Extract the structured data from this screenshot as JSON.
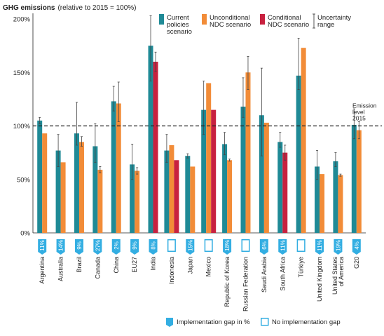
{
  "chart_data": {
    "type": "bar",
    "title": "GHG emissions",
    "subtitle": "(relative to 2015 = 100%)",
    "ylim": [
      0,
      200
    ],
    "yticks": [
      "0%",
      "50%",
      "100%",
      "150%",
      "200%"
    ],
    "ytick_values": [
      0,
      50,
      100,
      150,
      200
    ],
    "reference_line": {
      "value": 100,
      "label_lines": [
        "Emission",
        "level",
        "2015"
      ]
    },
    "legend_placement": "top",
    "legend": {
      "current": [
        "Current",
        "policies",
        "scenario"
      ],
      "unconditional": [
        "Unconditional",
        "NDC scenario"
      ],
      "conditional": [
        "Conditional",
        "NDC scenario"
      ],
      "uncertainty": [
        "Uncertainty",
        "range"
      ]
    },
    "colors": {
      "current": "#1f8a96",
      "unconditional": "#f28c38",
      "conditional": "#c8213f",
      "gap": "#33aee2",
      "errorbar": "#444444",
      "refline": "#222222"
    },
    "categories": [
      "Argentina",
      "Australia",
      "Brazil",
      "Canada",
      "China",
      "EU27",
      "India",
      "Indonesia",
      "Japan",
      "Mexico",
      "Republic of Korea",
      "Russian Federation",
      "Saudi Arabia",
      "South Africa",
      "Türkiye",
      "United Kingdom",
      "United States of America",
      "G20"
    ],
    "category_lines": [
      [
        "Argentina"
      ],
      [
        "Australia"
      ],
      [
        "Brazil"
      ],
      [
        "Canada"
      ],
      [
        "China"
      ],
      [
        "EU27"
      ],
      [
        "India"
      ],
      [
        "Indonesia"
      ],
      [
        "Japan"
      ],
      [
        "Mexico"
      ],
      [
        "Republic of Korea"
      ],
      [
        "Russian Federation"
      ],
      [
        "Saudi Arabia"
      ],
      [
        "South Africa"
      ],
      [
        "Türkiye"
      ],
      [
        "United Kingdom"
      ],
      [
        "United States",
        "of America"
      ],
      [
        "G20"
      ]
    ],
    "series": [
      {
        "key": "current",
        "name": "Current policies scenario",
        "values": [
          105,
          77,
          93,
          81,
          123,
          64,
          175,
          77,
          72,
          115,
          83,
          118,
          110,
          85,
          147,
          62,
          67,
          101
        ],
        "range": [
          [
            102,
            108
          ],
          [
            62,
            92
          ],
          [
            82,
            122
          ],
          [
            66,
            102
          ],
          [
            114,
            137
          ],
          [
            50,
            83
          ],
          [
            142,
            203
          ],
          [
            66,
            92
          ],
          [
            70,
            74
          ],
          [
            92,
            142
          ],
          [
            73,
            94
          ],
          [
            108,
            145
          ],
          [
            72,
            154
          ],
          [
            80,
            94
          ],
          [
            134,
            182
          ],
          [
            50,
            77
          ],
          [
            62,
            75
          ],
          [
            88,
            116
          ]
        ]
      },
      {
        "key": "unconditional",
        "name": "Unconditional NDC scenario",
        "values": [
          93,
          66,
          85,
          59,
          121,
          58,
          0,
          82,
          62,
          140,
          68,
          150,
          103,
          0,
          173,
          55,
          54,
          96
        ],
        "range": [
          null,
          null,
          [
            81,
            90
          ],
          [
            56,
            62
          ],
          [
            104,
            141
          ],
          [
            55,
            61
          ],
          null,
          null,
          null,
          null,
          [
            67,
            69
          ],
          [
            134,
            165
          ],
          null,
          null,
          null,
          null,
          [
            53,
            55
          ],
          [
            88,
            104
          ]
        ]
      },
      {
        "key": "conditional",
        "name": "Conditional NDC scenario",
        "values": [
          0,
          0,
          0,
          0,
          0,
          0,
          160,
          68,
          0,
          115,
          0,
          0,
          0,
          75,
          0,
          0,
          0,
          0
        ],
        "range": [
          null,
          null,
          null,
          null,
          null,
          null,
          [
            151,
            169
          ],
          null,
          null,
          null,
          null,
          null,
          null,
          [
            68,
            82
          ],
          null,
          null,
          null,
          null
        ]
      }
    ],
    "implementation_gap_pct": [
      11,
      14,
      9,
      27,
      2,
      9,
      8,
      null,
      15,
      null,
      18,
      null,
      6,
      11,
      null,
      11,
      19,
      4
    ],
    "gap_labels": [
      "11%",
      "14%",
      "9%",
      "27%",
      "2%",
      "9%",
      "8%",
      "",
      "15%",
      "",
      "18%",
      "",
      "6%",
      "11%",
      "",
      "11%",
      "19%",
      "4%"
    ],
    "bottom_legend": {
      "gap": "Implementation gap in %",
      "no_gap": "No implementation gap"
    }
  }
}
